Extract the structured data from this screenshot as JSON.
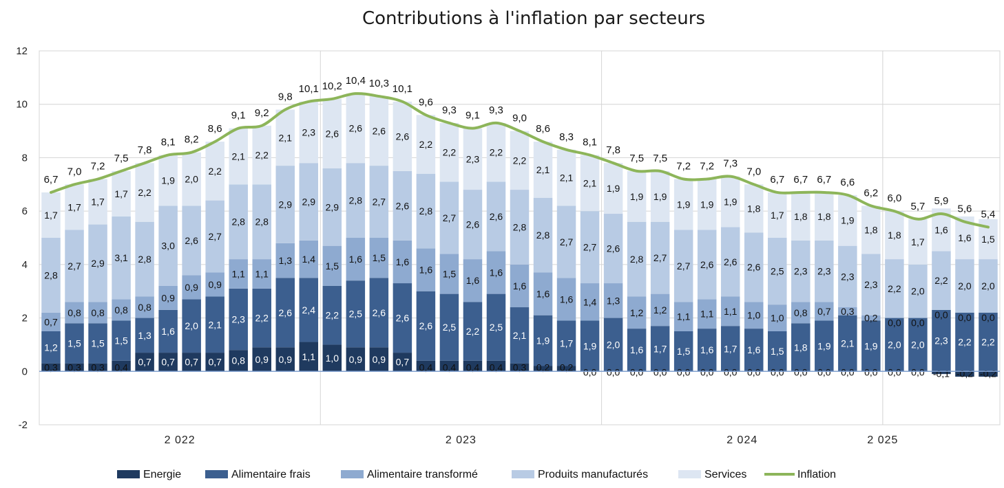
{
  "chart_data": {
    "type": "bar",
    "stacked": true,
    "title": "Contributions à l'inflation par secteurs",
    "xlabel": "",
    "ylabel": "",
    "ylim": [
      -2,
      12
    ],
    "yticks": [
      "-2",
      "0",
      "2",
      "4",
      "6",
      "8",
      "10",
      "12"
    ],
    "year_labels": [
      {
        "label": "2 022",
        "at_index": 6
      },
      {
        "label": "2 023",
        "at_index": 18
      },
      {
        "label": "2 024",
        "at_index": 30
      },
      {
        "label": "2 025",
        "at_index": 36
      }
    ],
    "year_separators_after_index": [
      11,
      23,
      35
    ],
    "colors": {
      "energie": "#1f3a5f",
      "alimentaire_frais": "#3c5f8f",
      "alimentaire_transforme": "#8eaad0",
      "produits_manufactures": "#b8cbe4",
      "services": "#dde6f2",
      "inflation": "#8db55a",
      "grid": "#d4d4d4",
      "axis": "#7f9fcf"
    },
    "series": [
      {
        "name": "Energie",
        "key": "energie",
        "values": [
          0.3,
          0.3,
          0.3,
          0.4,
          0.7,
          0.7,
          0.7,
          0.7,
          0.8,
          0.9,
          0.9,
          1.1,
          1.0,
          0.9,
          0.9,
          0.7,
          0.4,
          0.4,
          0.4,
          0.4,
          0.3,
          0.2,
          0.2,
          0.0,
          0.0,
          0.0,
          0.0,
          0.0,
          0.0,
          0.0,
          0.0,
          0.0,
          0.0,
          0.0,
          0.0,
          0.0,
          0.0,
          0.0,
          -0.1,
          -0.2,
          -0.2
        ],
        "labels": [
          "0,3",
          "0,3",
          "0,3",
          "0,4",
          "0,7",
          "0,7",
          "0,7",
          "0,7",
          "0,8",
          "0,9",
          "0,9",
          "1,1",
          "1,0",
          "0,9",
          "0,9",
          "0,7",
          "0,4",
          "0,4",
          "0,4",
          "0,4",
          "0,3",
          "0,2",
          "0,2",
          "0,0",
          "0,0",
          "0,0",
          "0,0",
          "0,0",
          "0,0",
          "0,0",
          "0,0",
          "0,0",
          "0,0",
          "0,0",
          "0,0",
          "0,0",
          "0,0",
          "0,0",
          "-0,1",
          "-0,2",
          "-0,2"
        ]
      },
      {
        "name": "Alimentaire frais",
        "key": "alimentaire_frais",
        "values": [
          1.2,
          1.5,
          1.5,
          1.5,
          1.3,
          1.6,
          2.0,
          2.1,
          2.3,
          2.2,
          2.6,
          2.4,
          2.2,
          2.5,
          2.6,
          2.6,
          2.6,
          2.5,
          2.2,
          2.5,
          2.1,
          1.9,
          1.7,
          1.9,
          2.0,
          1.6,
          1.7,
          1.5,
          1.6,
          1.7,
          1.6,
          1.5,
          1.8,
          1.9,
          2.1,
          1.9,
          2.0,
          2.0,
          2.3,
          2.2,
          2.2
        ],
        "labels": [
          "1,2",
          "1,5",
          "1,5",
          "1,5",
          "1,3",
          "1,6",
          "2,0",
          "2,1",
          "2,3",
          "2,2",
          "2,6",
          "2,4",
          "2,2",
          "2,5",
          "2,6",
          "2,6",
          "2,6",
          "2,5",
          "2,2",
          "2,5",
          "2,1",
          "1,9",
          "1,7",
          "1,9",
          "2,0",
          "1,6",
          "1,7",
          "1,5",
          "1,6",
          "1,7",
          "1,6",
          "1,5",
          "1,8",
          "1,9",
          "2,1",
          "1,9",
          "2,0",
          "2,0",
          "2,3",
          "2,2",
          "2,2"
        ]
      },
      {
        "name": "Alimentaire transformé",
        "key": "alimentaire_transforme",
        "values": [
          0.7,
          0.8,
          0.8,
          0.8,
          0.8,
          0.9,
          0.9,
          0.9,
          1.1,
          1.1,
          1.3,
          1.4,
          1.5,
          1.6,
          1.5,
          1.6,
          1.6,
          1.5,
          1.6,
          1.6,
          1.6,
          1.6,
          1.6,
          1.4,
          1.3,
          1.2,
          1.2,
          1.1,
          1.1,
          1.1,
          1.0,
          1.0,
          0.8,
          0.7,
          0.3,
          0.2,
          0.0,
          0.0,
          0.0,
          0.0,
          0.0
        ],
        "labels": [
          "0,7",
          "0,8",
          "0,8",
          "0,8",
          "0,8",
          "0,9",
          "0,9",
          "0,9",
          "1,1",
          "1,1",
          "1,3",
          "1,4",
          "1,5",
          "1,6",
          "1,5",
          "1,6",
          "1,6",
          "1,5",
          "1,6",
          "1,6",
          "1,6",
          "1,6",
          "1,6",
          "1,4",
          "1,3",
          "1,2",
          "1,2",
          "1,1",
          "1,1",
          "1,1",
          "1,0",
          "1,0",
          "0,8",
          "0,7",
          "0,3",
          "0,2",
          "0,0",
          "0,0",
          "0,0",
          "0,0",
          "0,0"
        ]
      },
      {
        "name": "Produits manufacturés",
        "key": "produits_manufactures",
        "values": [
          2.8,
          2.7,
          2.9,
          3.1,
          2.8,
          3.0,
          2.6,
          2.7,
          2.8,
          2.8,
          2.9,
          2.9,
          2.9,
          2.8,
          2.7,
          2.6,
          2.8,
          2.7,
          2.6,
          2.6,
          2.8,
          2.8,
          2.7,
          2.7,
          2.6,
          2.8,
          2.7,
          2.7,
          2.6,
          2.6,
          2.6,
          2.5,
          2.3,
          2.3,
          2.3,
          2.3,
          2.2,
          2.0,
          2.2,
          2.0,
          2.0
        ],
        "labels": [
          "2,8",
          "2,7",
          "2,9",
          "3,1",
          "2,8",
          "3,0",
          "2,6",
          "2,7",
          "2,8",
          "2,8",
          "2,9",
          "2,9",
          "2,9",
          "2,8",
          "2,7",
          "2,6",
          "2,8",
          "2,7",
          "2,6",
          "2,6",
          "2,8",
          "2,8",
          "2,7",
          "2,7",
          "2,6",
          "2,8",
          "2,7",
          "2,7",
          "2,6",
          "2,6",
          "2,6",
          "2,5",
          "2,3",
          "2,3",
          "2,3",
          "2,3",
          "2,2",
          "2,0",
          "2,2",
          "2,0",
          "2,0"
        ]
      },
      {
        "name": "Services",
        "key": "services",
        "values": [
          1.7,
          1.7,
          1.7,
          1.7,
          2.2,
          1.9,
          2.0,
          2.2,
          2.1,
          2.2,
          2.1,
          2.3,
          2.6,
          2.6,
          2.6,
          2.6,
          2.2,
          2.2,
          2.3,
          2.2,
          2.2,
          2.1,
          2.1,
          2.1,
          1.9,
          1.9,
          1.9,
          1.9,
          1.9,
          1.9,
          1.8,
          1.7,
          1.8,
          1.8,
          1.9,
          1.8,
          1.8,
          1.7,
          1.6,
          1.6,
          1.5
        ],
        "labels": [
          "1,7",
          "1,7",
          "1,7",
          "1,7",
          "2,2",
          "1,9",
          "2,0",
          "2,2",
          "2,1",
          "2,2",
          "2,1",
          "2,3",
          "2,6",
          "2,6",
          "2,6",
          "2,6",
          "2,2",
          "2,2",
          "2,3",
          "2,2",
          "2,2",
          "2,1",
          "2,1",
          "2,1",
          "1,9",
          "1,9",
          "1,9",
          "1,9",
          "1,9",
          "1,9",
          "1,8",
          "1,7",
          "1,8",
          "1,8",
          "1,9",
          "1,8",
          "1,8",
          "1,7",
          "1,6",
          "1,6",
          "1,5"
        ]
      },
      {
        "name": "Inflation",
        "key": "inflation",
        "type": "line",
        "values": [
          6.7,
          7.0,
          7.2,
          7.5,
          7.8,
          8.1,
          8.2,
          8.6,
          9.1,
          9.2,
          9.8,
          10.1,
          10.2,
          10.4,
          10.3,
          10.1,
          9.6,
          9.3,
          9.1,
          9.3,
          9.0,
          8.6,
          8.3,
          8.1,
          7.8,
          7.5,
          7.5,
          7.2,
          7.2,
          7.3,
          7.0,
          6.7,
          6.7,
          6.7,
          6.6,
          6.2,
          6.0,
          5.7,
          5.9,
          5.6,
          5.4
        ],
        "labels": [
          "6,7",
          "7,0",
          "7,2",
          "7,5",
          "7,8",
          "8,1",
          "8,2",
          "8,6",
          "9,1",
          "9,2",
          "9,8",
          "10,1",
          "10,2",
          "10,4",
          "10,3",
          "10,1",
          "9,6",
          "9,3",
          "9,1",
          "9,3",
          "9,0",
          "8,6",
          "8,3",
          "8,1",
          "7,8",
          "7,5",
          "7,5",
          "7,2",
          "7,2",
          "7,3",
          "7,0",
          "6,7",
          "6,7",
          "6,7",
          "6,6",
          "6,2",
          "6,0",
          "5,7",
          "5,9",
          "5,6",
          "5,4"
        ]
      }
    ],
    "legend": {
      "placement": "bottom",
      "entries": [
        "Energie",
        "Alimentaire frais",
        "Alimentaire transformé",
        "Produits manufacturés",
        "Services",
        "Inflation"
      ]
    }
  }
}
